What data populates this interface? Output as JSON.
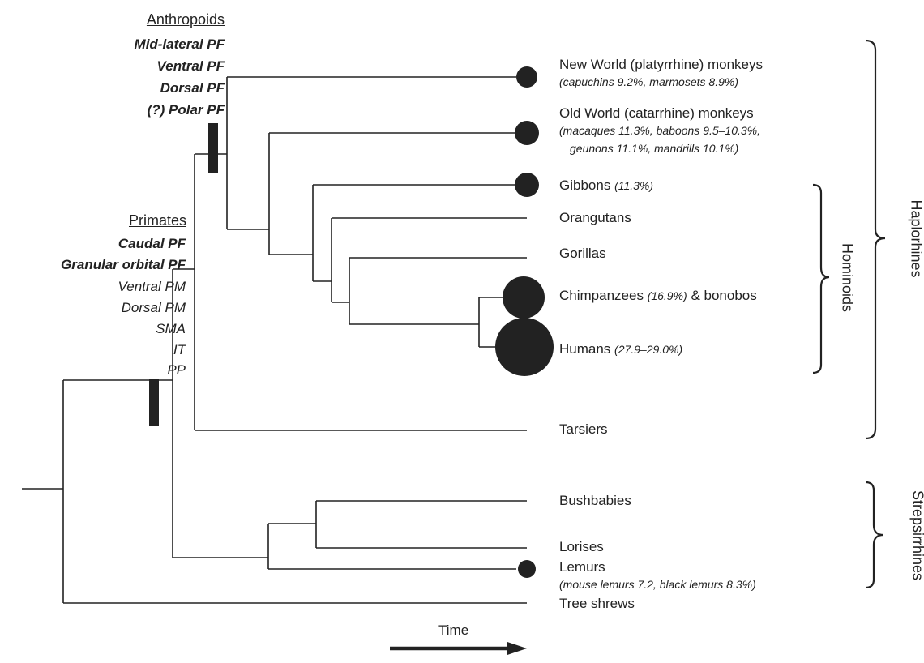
{
  "colors": {
    "ink": "#222222",
    "background": "#ffffff"
  },
  "clades": {
    "anthropoids": {
      "title": "Anthropoids",
      "regions": [
        {
          "label": "Mid-lateral PF",
          "bold": true
        },
        {
          "label": "Ventral PF",
          "bold": true
        },
        {
          "label": "Dorsal PF",
          "bold": true
        },
        {
          "label": "(?) Polar PF",
          "bold": true
        }
      ]
    },
    "primates": {
      "title": "Primates",
      "regions": [
        {
          "label": "Caudal PF",
          "bold": true
        },
        {
          "label": "Granular orbital PF",
          "bold": true
        },
        {
          "label": "Ventral PM",
          "bold": false
        },
        {
          "label": "Dorsal PM",
          "bold": false
        },
        {
          "label": "SMA",
          "bold": false
        },
        {
          "label": "IT",
          "bold": false
        },
        {
          "label": "PP",
          "bold": false
        }
      ]
    }
  },
  "taxa": {
    "new_world": {
      "name": "New World (platyrrhine) monkeys",
      "note1": "(capuchins 9.2%, marmosets 8.9%)"
    },
    "old_world": {
      "name": "Old World (catarrhine) monkeys",
      "note1": "(macaques 11.3%, baboons 9.5–10.3%,",
      "note2": "geunons 11.1%, mandrills 10.1%)"
    },
    "gibbons": {
      "name": "Gibbons",
      "note": "(11.3%)"
    },
    "orangutans": {
      "name": "Orangutans"
    },
    "gorillas": {
      "name": "Gorillas"
    },
    "chimpanzees": {
      "name": "Chimpanzees",
      "note": "(16.9%)",
      "suffix": "& bonobos"
    },
    "humans": {
      "name": "Humans",
      "note": "(27.9–29.0%)"
    },
    "tarsiers": {
      "name": "Tarsiers"
    },
    "bushbabies": {
      "name": "Bushbabies"
    },
    "lorises": {
      "name": "Lorises"
    },
    "lemurs": {
      "name": "Lemurs",
      "note1": "(mouse lemurs 7.2, black lemurs 8.3%)"
    },
    "tree_shrews": {
      "name": "Tree shrews"
    }
  },
  "groups": {
    "haplorhines": "Haplorhines",
    "hominoids": "Hominoids",
    "strepsirrhines": "Strepsirrhines"
  },
  "time_label": "Time",
  "relative_size": [
    {
      "taxon": "New World (platyrrhine) monkeys",
      "value": 9.2
    },
    {
      "taxon": "Old World (catarrhine) monkeys",
      "value": 11.3
    },
    {
      "taxon": "Gibbons",
      "value": 11.3
    },
    {
      "taxon": "Chimpanzees",
      "value": 16.9
    },
    {
      "taxon": "Humans",
      "value": 29.0
    },
    {
      "taxon": "Lemurs",
      "value": 8.3
    }
  ]
}
